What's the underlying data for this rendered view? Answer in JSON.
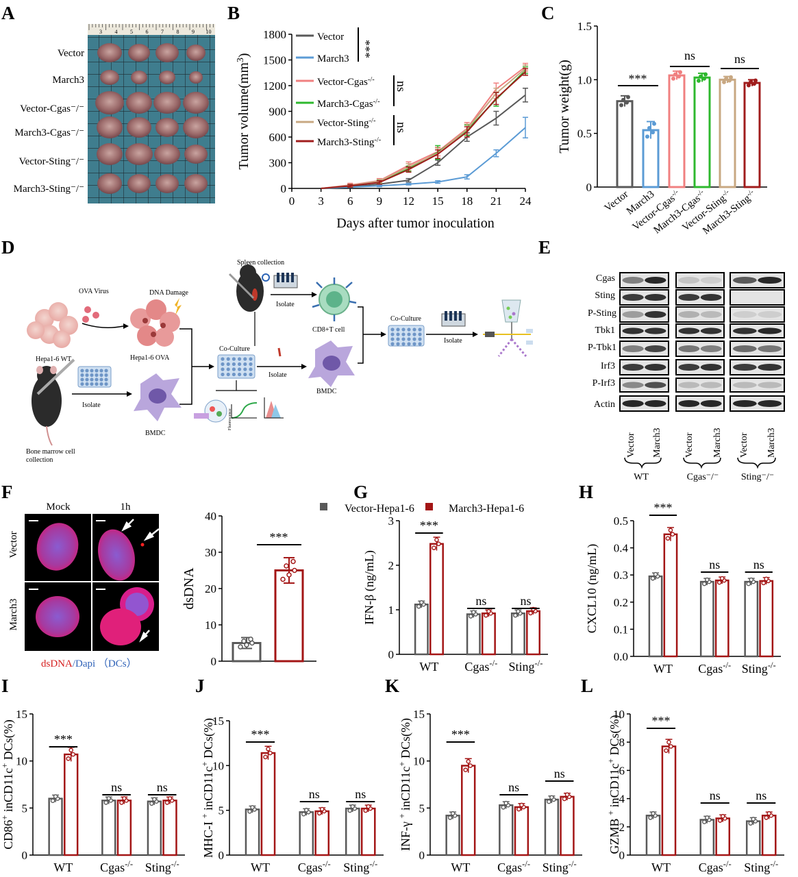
{
  "panel_letters": [
    "A",
    "B",
    "C",
    "D",
    "E",
    "F",
    "G",
    "H",
    "I",
    "J",
    "K",
    "L"
  ],
  "colors": {
    "vector": "#595959",
    "march3": "#5b9bd5",
    "vector_cgas": "#f08080",
    "march3_cgas": "#2eb82e",
    "vector_sting": "#c8a882",
    "march3_sting": "#a01c1c",
    "dark_red": "#a31515",
    "black": "#000000"
  },
  "panel_a": {
    "rows": [
      "Vector",
      "March3",
      "Vector-Cgas⁻/⁻",
      "March3-Cgas⁻/⁻",
      "Vector-Sting⁻/⁻",
      "March3-Sting⁻/⁻"
    ],
    "ruler_ticks": [
      "3",
      "4",
      "5",
      "6",
      "7",
      "8",
      "9",
      "10"
    ],
    "image": "tumor-photo"
  },
  "panel_d": {
    "image": "workflow-schematic",
    "labels": [
      "OVA Virus",
      "DNA Damage",
      "Spleen collection",
      "Isolate",
      "CD8+T cell",
      "Co-Culture",
      "Hepa1-6 WT",
      "Hepa1-6 OVA",
      "Isolate",
      "BMDC",
      "Isolate",
      "BMDC",
      "Bone marrow cell",
      "collection",
      "Fluorescence"
    ]
  },
  "panel_e": {
    "image": "western-blot",
    "proteins": [
      "Cgas",
      "Sting",
      "P-Sting",
      "Tbk1",
      "P-Tbk1",
      "Irf3",
      "P-Irf3",
      "Actin"
    ],
    "lanes": [
      "Vector",
      "March3",
      "Vector",
      "March3",
      "Vector",
      "March3"
    ],
    "groups": [
      "WT",
      "Cgas⁻/⁻",
      "Sting⁻/⁻"
    ]
  },
  "panel_f": {
    "image": "dsDNA-immunofluorescence",
    "col_labels": [
      "Mock",
      "1h"
    ],
    "row_labels": [
      "Vector",
      "March3"
    ],
    "caption_red": "dsDNA",
    "caption_blue": "/Dapi （DCs）"
  },
  "chart_data": [
    {
      "id": "B",
      "type": "line",
      "xlabel": "Days after tumor inoculation",
      "ylabel": "Tumor volume(mm³)",
      "x": [
        3,
        6,
        9,
        12,
        15,
        18,
        21,
        24
      ],
      "xlim": [
        0,
        24
      ],
      "ylim": [
        0,
        1800
      ],
      "xticks": [
        "0",
        "3",
        "6",
        "9",
        "12",
        "15",
        "18",
        "21",
        "24"
      ],
      "yticks": [
        "0",
        "300",
        "600",
        "900",
        "1200",
        "1500",
        "1800"
      ],
      "series": [
        {
          "name": "Vector",
          "color": "#595959",
          "values": [
            0,
            20,
            50,
            95,
            300,
            600,
            820,
            1090
          ],
          "err": [
            0,
            10,
            15,
            20,
            30,
            50,
            80,
            80
          ]
        },
        {
          "name": "March3",
          "color": "#5b9bd5",
          "values": [
            0,
            15,
            30,
            50,
            75,
            135,
            410,
            710
          ],
          "err": [
            0,
            5,
            10,
            10,
            15,
            25,
            40,
            120
          ]
        },
        {
          "name": "Vector-Cgas⁻/⁻",
          "color": "#f08080",
          "values": [
            0,
            40,
            90,
            270,
            430,
            700,
            1160,
            1420
          ],
          "err": [
            0,
            20,
            25,
            40,
            50,
            70,
            70,
            40
          ]
        },
        {
          "name": "March3-Cgas⁻/⁻",
          "color": "#2eb82e",
          "values": [
            0,
            30,
            75,
            230,
            420,
            680,
            1040,
            1380
          ],
          "err": [
            0,
            15,
            20,
            30,
            80,
            60,
            80,
            40
          ]
        },
        {
          "name": "Vector-Sting⁻/⁻",
          "color": "#c8a882",
          "values": [
            0,
            35,
            85,
            250,
            410,
            690,
            1110,
            1400
          ],
          "err": [
            0,
            15,
            20,
            40,
            60,
            60,
            60,
            40
          ]
        },
        {
          "name": "March3-Sting⁻/⁻",
          "color": "#a01c1c",
          "values": [
            0,
            30,
            70,
            220,
            400,
            660,
            1050,
            1360
          ],
          "err": [
            0,
            15,
            20,
            30,
            50,
            60,
            70,
            40
          ]
        }
      ],
      "annotations": [
        "***",
        "ns",
        "ns"
      ]
    },
    {
      "id": "C",
      "type": "bar",
      "ylabel": "Tumor weight(g)",
      "categories": [
        "Vector",
        "March3",
        "Vector-Cgas⁻/⁻",
        "March3-Cgas⁻/⁻",
        "Vector-Sting⁻/⁻",
        "March3-Sting⁻/⁻"
      ],
      "values": [
        0.8,
        0.53,
        1.04,
        1.02,
        1.0,
        0.97
      ],
      "err": [
        0.05,
        0.08,
        0.04,
        0.04,
        0.03,
        0.03
      ],
      "colors": [
        "#595959",
        "#5b9bd5",
        "#f08080",
        "#2eb82e",
        "#c8a882",
        "#a01c1c"
      ],
      "ylim": [
        0,
        1.5
      ],
      "yticks": [
        "0",
        "0.5",
        "1.0",
        "1.5"
      ],
      "annotations": [
        "***",
        "ns",
        "ns"
      ]
    },
    {
      "id": "F",
      "type": "bar",
      "ylabel": "dsDNA",
      "categories": [
        "Vector",
        "March3"
      ],
      "values": [
        5,
        25
      ],
      "err": [
        1.5,
        3.5
      ],
      "ylim": [
        0,
        40
      ],
      "yticks": [
        "0",
        "10",
        "20",
        "30",
        "40"
      ],
      "annotations": [
        "***"
      ]
    },
    {
      "id": "G",
      "type": "bar",
      "ylabel": "IFN-β (ng/mL)",
      "legend": [
        "Vector-Hepa1-6",
        "March3-Hepa1-6"
      ],
      "categories": [
        "WT",
        "Cgas⁻/⁻",
        "Sting⁻/⁻"
      ],
      "series": [
        {
          "name": "Vector-Hepa1-6",
          "values": [
            1.12,
            0.9,
            0.92
          ]
        },
        {
          "name": "March3-Hepa1-6",
          "values": [
            2.48,
            0.92,
            0.97
          ]
        }
      ],
      "ylim": [
        0,
        3
      ],
      "yticks": [
        "0",
        "1",
        "2",
        "3"
      ],
      "annotations": [
        "***",
        "ns",
        "ns"
      ]
    },
    {
      "id": "H",
      "type": "bar",
      "ylabel": "CXCL10 (ng/mL)",
      "categories": [
        "WT",
        "Cgas⁻/⁻",
        "Sting⁻/⁻"
      ],
      "series": [
        {
          "name": "Vector-Hepa1-6",
          "values": [
            0.295,
            0.275,
            0.275
          ]
        },
        {
          "name": "March3-Hepa1-6",
          "values": [
            0.45,
            0.28,
            0.278
          ]
        }
      ],
      "ylim": [
        0,
        0.5
      ],
      "yticks": [
        "0.0",
        "0.1",
        "0.2",
        "0.3",
        "0.4",
        "0.5"
      ],
      "annotations": [
        "***",
        "ns",
        "ns"
      ]
    },
    {
      "id": "I",
      "type": "bar",
      "ylabel": "CD86⁺ inCD11c⁺ DCs(%)",
      "categories": [
        "WT",
        "Cgas⁻/⁻",
        "Sting⁻/⁻"
      ],
      "series": [
        {
          "name": "Vector-Hepa1-6",
          "values": [
            6.0,
            5.8,
            5.7
          ]
        },
        {
          "name": "March3-Hepa1-6",
          "values": [
            10.7,
            5.8,
            5.8
          ]
        }
      ],
      "ylim": [
        0,
        15
      ],
      "yticks": [
        "0",
        "5",
        "10",
        "15"
      ],
      "annotations": [
        "***",
        "ns",
        "ns"
      ]
    },
    {
      "id": "J",
      "type": "bar",
      "ylabel": "MHC-I ⁺ inCD11c⁺ DCs(%)",
      "categories": [
        "WT",
        "Cgas⁻/⁻",
        "Sting⁻/⁻"
      ],
      "series": [
        {
          "name": "Vector-Hepa1-6",
          "values": [
            5.1,
            4.8,
            5.2
          ]
        },
        {
          "name": "March3-Hepa1-6",
          "values": [
            11.4,
            4.9,
            5.2
          ]
        }
      ],
      "ylim": [
        0,
        15
      ],
      "yticks": [
        "0",
        "5",
        "10",
        "15"
      ],
      "annotations": [
        "***",
        "ns",
        "ns"
      ]
    },
    {
      "id": "K",
      "type": "bar",
      "ylabel": "INF-γ ⁺ inCD11c⁺ DCs(%)",
      "categories": [
        "WT",
        "Cgas⁻/⁻",
        "Sting⁻/⁻"
      ],
      "series": [
        {
          "name": "Vector-Hepa1-6",
          "values": [
            4.2,
            5.3,
            5.9
          ]
        },
        {
          "name": "March3-Hepa1-6",
          "values": [
            9.5,
            5.1,
            6.2
          ]
        }
      ],
      "ylim": [
        0,
        15
      ],
      "yticks": [
        "0",
        "5",
        "10",
        "15"
      ],
      "annotations": [
        "***",
        "ns",
        "ns"
      ]
    },
    {
      "id": "L",
      "type": "bar",
      "ylabel": "GZMB ⁺ inCD11c⁺ DCs(%)",
      "categories": [
        "WT",
        "Cgas⁻/⁻",
        "Sting⁻/⁻"
      ],
      "series": [
        {
          "name": "Vector-Hepa1-6",
          "values": [
            2.8,
            2.5,
            2.4
          ]
        },
        {
          "name": "March3-Hepa1-6",
          "values": [
            7.7,
            2.6,
            2.8
          ]
        }
      ],
      "ylim": [
        0,
        10
      ],
      "yticks": [
        "0",
        "2",
        "4",
        "6",
        "8",
        "10"
      ],
      "annotations": [
        "***",
        "ns",
        "ns"
      ]
    }
  ]
}
